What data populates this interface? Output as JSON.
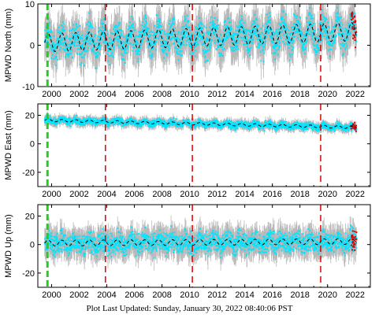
{
  "chart_data": [
    {
      "type": "scatter",
      "ylabel": "MPWD North (mm)",
      "ylim": [
        -10,
        10
      ],
      "yticks": [
        -10,
        0,
        10
      ],
      "xlim": [
        1999.0,
        2023.1
      ],
      "xticks": [
        "2000",
        "2002",
        "2004",
        "2006",
        "2008",
        "2010",
        "2012",
        "2014",
        "2016",
        "2018",
        "2020",
        "2022"
      ],
      "trend": {
        "base": 0.6,
        "slope": 0.12,
        "amplitude": 2.2,
        "start": 1999.5,
        "end": 2022.1
      },
      "scatter_spread": 3.2
    },
    {
      "type": "scatter",
      "ylabel": "MPWD East (mm)",
      "ylim": [
        -30,
        28
      ],
      "yticks": [
        -20,
        0,
        20
      ],
      "xlim": [
        1999.0,
        2023.1
      ],
      "xticks": [
        "2000",
        "2002",
        "2004",
        "2006",
        "2008",
        "2010",
        "2012",
        "2014",
        "2016",
        "2018",
        "2020",
        "2022"
      ],
      "trend": {
        "base": 16.5,
        "slope": -0.22,
        "amplitude": 0.9,
        "start": 1999.5,
        "end": 2022.1
      },
      "scatter_spread": 2.2
    },
    {
      "type": "scatter",
      "ylabel": "MPWD Up (mm)",
      "ylim": [
        -30,
        28
      ],
      "yticks": [
        -20,
        0,
        20
      ],
      "xlim": [
        1999.0,
        2023.1
      ],
      "xticks": [
        "2000",
        "2002",
        "2004",
        "2006",
        "2008",
        "2010",
        "2012",
        "2014",
        "2016",
        "2018",
        "2020",
        "2022"
      ],
      "trend": {
        "base": 1.0,
        "slope": 0.05,
        "amplitude": 2.0,
        "start": 1999.5,
        "end": 2022.1
      },
      "scatter_spread": 6.5
    }
  ],
  "event_lines": {
    "green": [
      1999.7
    ],
    "red": [
      2003.9,
      2010.2,
      2019.5
    ]
  },
  "colors": {
    "points": "#00e5ff",
    "error_bars": "#b8b8b8",
    "trend": "#000000",
    "red_lines": "#e00000",
    "green_line": "#22cc22",
    "recent_points": "#e00000"
  },
  "footer": {
    "text": "Plot Last Updated:   Sunday, January 30, 2022 08:40:06 PST"
  }
}
